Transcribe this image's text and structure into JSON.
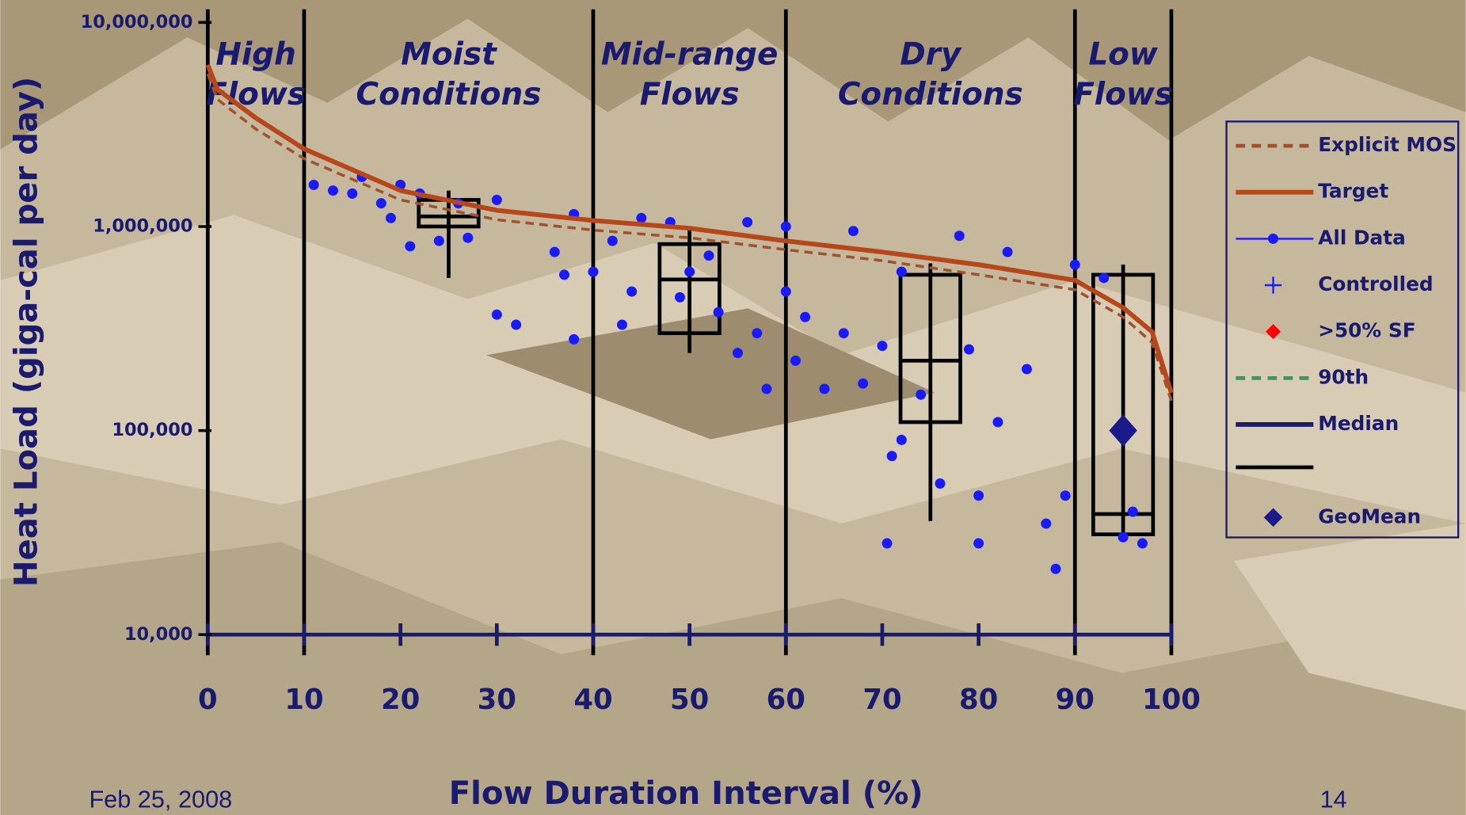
{
  "chart_data": {
    "type": "load-duration",
    "x_label": "Flow Duration Interval (%)",
    "y_label": "Heat Load (giga-cal per day)",
    "date": "Feb 25, 2008",
    "page_number": "14",
    "xlim": [
      0,
      100
    ],
    "xticks": [
      0,
      10,
      20,
      30,
      40,
      50,
      60,
      70,
      80,
      90,
      100
    ],
    "ylim": [
      10000,
      10000000
    ],
    "log_y": true,
    "yticks": [
      {
        "value": 10000,
        "label": "10,000"
      },
      {
        "value": 100000,
        "label": "100,000"
      },
      {
        "value": 1000000,
        "label": "1,000,000"
      },
      {
        "value": 10000000,
        "label": "10,000,000"
      }
    ],
    "zone_boundaries": [
      10,
      40,
      60,
      90
    ],
    "zones": [
      [
        "High",
        "Flows"
      ],
      [
        "Moist",
        "Conditions"
      ],
      [
        "Mid-range",
        "Flows"
      ],
      [
        "Dry",
        "Conditions"
      ],
      [
        "Low",
        "Flows"
      ]
    ],
    "series": [
      {
        "name": "Explicit MOS",
        "color": "#a0522d",
        "style": "dashed",
        "x": [
          0,
          1,
          5,
          10,
          20,
          30,
          40,
          50,
          60,
          70,
          80,
          90,
          95,
          98,
          100
        ],
        "values": [
          5600000,
          4200000,
          3000000,
          2150000,
          1350000,
          1080000,
          960000,
          880000,
          770000,
          680000,
          580000,
          490000,
          360000,
          270000,
          140000
        ]
      },
      {
        "name": "Target",
        "color": "#b5471b",
        "style": "line",
        "x": [
          0,
          1,
          5,
          10,
          20,
          30,
          40,
          50,
          60,
          70,
          80,
          90,
          95,
          98,
          100
        ],
        "values": [
          6200000,
          4700000,
          3400000,
          2400000,
          1500000,
          1200000,
          1070000,
          980000,
          850000,
          750000,
          650000,
          545000,
          400000,
          305000,
          153000
        ]
      },
      {
        "name": "All Data",
        "color": "#1a1aff",
        "style": "dots",
        "x": [
          11,
          13,
          15,
          16,
          18,
          19,
          20,
          21,
          22,
          24,
          26,
          27,
          30,
          30,
          32,
          36,
          37,
          38,
          38,
          40,
          42,
          43,
          44,
          45,
          48,
          49,
          50,
          52,
          53,
          55,
          56,
          57,
          58,
          60,
          60,
          61,
          62,
          64,
          66,
          67,
          68,
          70,
          70.5,
          71,
          72,
          72,
          74,
          76,
          78,
          79,
          80,
          80,
          82,
          83,
          85,
          87,
          88,
          89,
          90,
          93,
          95,
          96,
          97
        ],
        "values": [
          1600000,
          1500000,
          1450000,
          1750000,
          1300000,
          1100000,
          1600000,
          800000,
          1450000,
          850000,
          1300000,
          880000,
          1350000,
          370000,
          330000,
          750000,
          580000,
          280000,
          1150000,
          600000,
          850000,
          330000,
          480000,
          1100000,
          1050000,
          450000,
          600000,
          720000,
          380000,
          240000,
          1050000,
          300000,
          160000,
          1000000,
          480000,
          220000,
          360000,
          160000,
          300000,
          950000,
          170000,
          260000,
          28000,
          75000,
          90000,
          600000,
          150000,
          55000,
          900000,
          250000,
          48000,
          28000,
          110000,
          750000,
          200000,
          35000,
          21000,
          48000,
          650000,
          560000,
          30000,
          40000,
          28000
        ]
      },
      {
        "name": "Controlled",
        "color": "#1a1aff",
        "style": "plus",
        "x": [],
        "values": []
      },
      {
        "name": ">50% SF",
        "color": "#ff0000",
        "style": "diamond",
        "x": [],
        "values": []
      },
      {
        "name": "90th",
        "color": "#2e9e5e",
        "style": "dashed",
        "x": [],
        "values": []
      },
      {
        "name": "Median",
        "color": "#1a1a6e",
        "style": "line",
        "x": [],
        "values": []
      },
      {
        "name": "GeoMean",
        "color": "#1a1a8c",
        "style": "big-diamond",
        "x": [
          95
        ],
        "values": [
          100000
        ]
      }
    ],
    "boxes": [
      {
        "x": 25,
        "low": 560000,
        "q1": 1000000,
        "median": 1120000,
        "q3": 1350000,
        "high": 1500000
      },
      {
        "x": 50,
        "low": 240000,
        "q1": 300000,
        "median": 550000,
        "q3": 820000,
        "high": 1000000
      },
      {
        "x": 75,
        "low": 36000,
        "q1": 110000,
        "median": 220000,
        "q3": 580000,
        "high": 660000
      },
      {
        "x": 95,
        "low": 29000,
        "q1": 31000,
        "median": 39000,
        "q3": 580000,
        "high": 650000
      }
    ]
  }
}
